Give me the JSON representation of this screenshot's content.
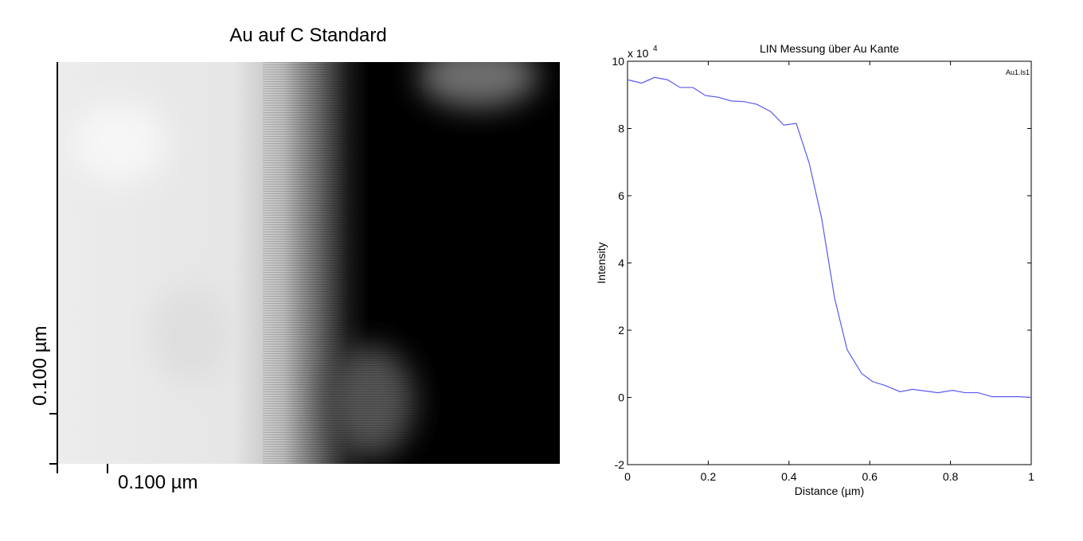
{
  "chart_data": [
    {
      "type": "image",
      "title": "Au auf C Standard",
      "x_scale_label": "0.100 µm",
      "y_scale_label": "0.100 µm"
    },
    {
      "type": "line",
      "title": "LIN Messung über Au Kante",
      "x_label": "Distance (µm)",
      "y_label": "Intensity",
      "y_scale_label": "x 10",
      "y_scale_exponent": "4",
      "x": [
        0,
        0.035,
        0.067,
        0.099,
        0.13,
        0.162,
        0.193,
        0.225,
        0.256,
        0.288,
        0.32,
        0.355,
        0.387,
        0.418,
        0.45,
        0.481,
        0.513,
        0.544,
        0.58,
        0.607,
        0.639,
        0.675,
        0.706,
        0.738,
        0.769,
        0.805,
        0.836,
        0.868,
        0.903,
        0.935,
        0.97,
        1.0
      ],
      "series": [
        {
          "name": "Au1.ls1",
          "color": "#5a5aee",
          "values": [
            9.45,
            9.35,
            9.52,
            9.45,
            9.22,
            9.22,
            8.98,
            8.93,
            8.82,
            8.8,
            8.72,
            8.5,
            8.1,
            8.15,
            6.97,
            5.32,
            2.95,
            1.42,
            0.71,
            0.47,
            0.35,
            0.17,
            0.24,
            0.19,
            0.14,
            0.21,
            0.14,
            0.14,
            0.02,
            0.02,
            0.02,
            0.0
          ]
        }
      ],
      "legend": "upper right",
      "xlim": [
        0,
        1
      ],
      "xticks": [
        0,
        0.2,
        0.4,
        0.6,
        0.8,
        1
      ],
      "ylim": [
        -2,
        10
      ],
      "yticks": [
        -2,
        0,
        2,
        4,
        6,
        8,
        10
      ]
    }
  ]
}
